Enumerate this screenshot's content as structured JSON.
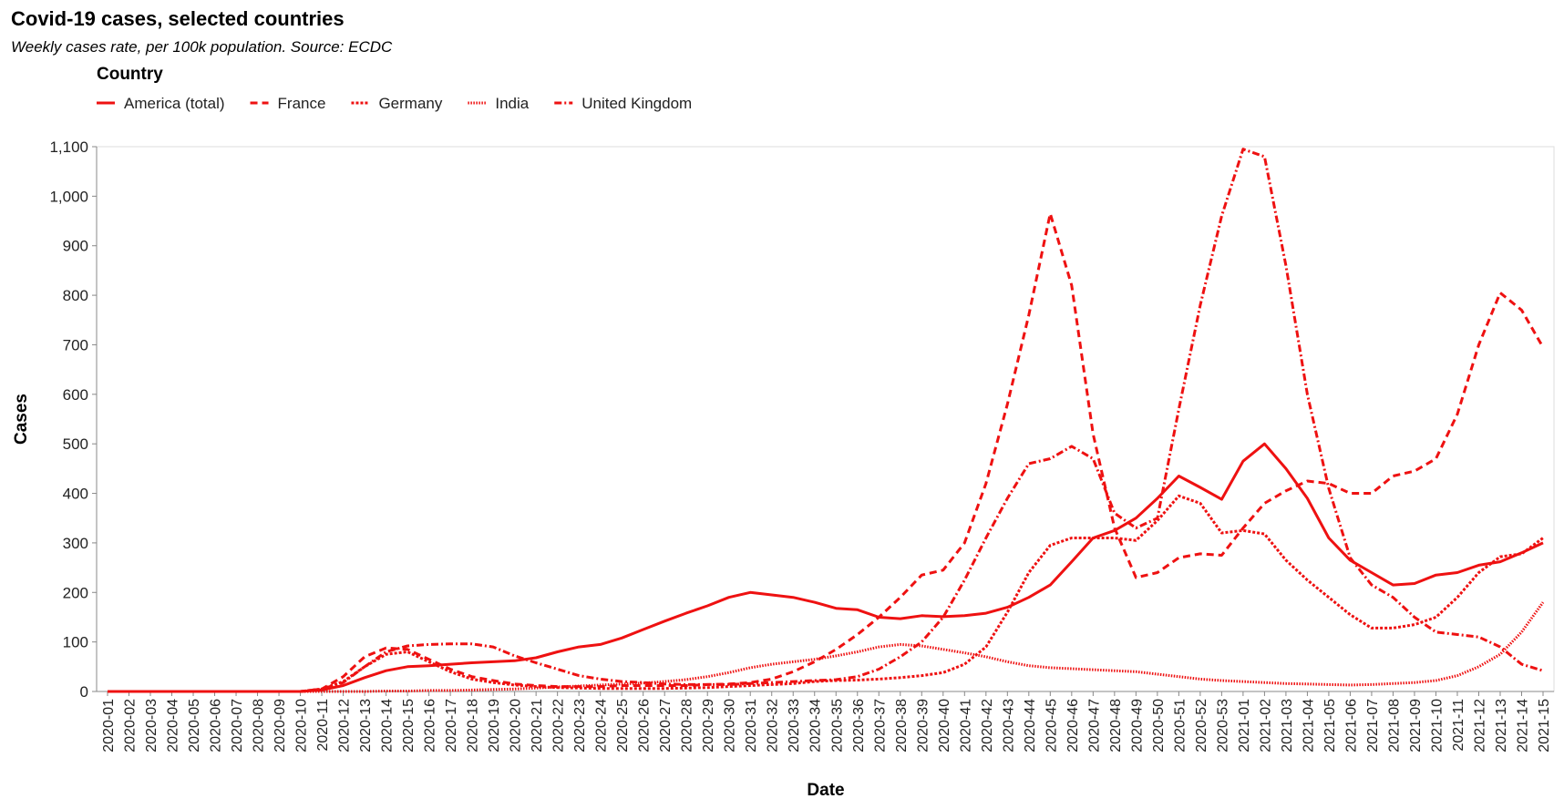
{
  "chart_data": {
    "type": "line",
    "title": "Covid-19 cases, selected countries",
    "subtitle": "Weekly cases rate, per 100k population. Source: ECDC",
    "legend_title": "Country",
    "x_label": "Date",
    "y_label": "Cases",
    "categories": [
      "2020-01",
      "2020-02",
      "2020-03",
      "2020-04",
      "2020-05",
      "2020-06",
      "2020-07",
      "2020-08",
      "2020-09",
      "2020-10",
      "2020-11",
      "2020-12",
      "2020-13",
      "2020-14",
      "2020-15",
      "2020-16",
      "2020-17",
      "2020-18",
      "2020-19",
      "2020-20",
      "2020-21",
      "2020-22",
      "2020-23",
      "2020-24",
      "2020-25",
      "2020-26",
      "2020-27",
      "2020-28",
      "2020-29",
      "2020-30",
      "2020-31",
      "2020-32",
      "2020-33",
      "2020-34",
      "2020-35",
      "2020-36",
      "2020-37",
      "2020-38",
      "2020-39",
      "2020-40",
      "2020-41",
      "2020-42",
      "2020-43",
      "2020-44",
      "2020-45",
      "2020-46",
      "2020-47",
      "2020-48",
      "2020-49",
      "2020-50",
      "2020-51",
      "2020-52",
      "2020-53",
      "2021-01",
      "2021-02",
      "2021-03",
      "2021-04",
      "2021-05",
      "2021-06",
      "2021-07",
      "2021-08",
      "2021-09",
      "2021-10",
      "2021-11",
      "2021-12",
      "2021-13",
      "2021-14",
      "2021-15"
    ],
    "series": [
      {
        "name": "America (total)",
        "color": "#ee1111",
        "dash": [],
        "values": [
          0,
          0,
          0,
          0,
          0,
          0,
          0,
          0,
          0,
          0,
          3,
          12,
          28,
          42,
          50,
          52,
          55,
          58,
          60,
          62,
          68,
          80,
          90,
          95,
          108,
          125,
          142,
          158,
          173,
          190,
          200,
          195,
          190,
          180,
          168,
          165,
          150,
          147,
          153,
          151,
          153,
          158,
          170,
          190,
          215,
          262,
          310,
          325,
          350,
          390,
          435,
          412,
          388,
          465,
          500,
          450,
          390,
          310,
          265,
          240,
          215,
          218,
          235,
          240,
          255,
          262,
          280,
          300
        ]
      },
      {
        "name": "France",
        "color": "#ee1111",
        "dash": [
          8,
          5
        ],
        "values": [
          0,
          0,
          0,
          0,
          0,
          0,
          0,
          0,
          0,
          0,
          5,
          30,
          70,
          88,
          85,
          65,
          45,
          30,
          22,
          15,
          12,
          10,
          10,
          10,
          12,
          12,
          12,
          12,
          14,
          15,
          18,
          25,
          40,
          60,
          85,
          115,
          150,
          190,
          235,
          245,
          300,
          420,
          580,
          760,
          965,
          820,
          520,
          330,
          230,
          240,
          270,
          278,
          275,
          330,
          380,
          405,
          425,
          420,
          400,
          400,
          435,
          445,
          470,
          560,
          700,
          805,
          770,
          695
        ]
      },
      {
        "name": "Germany",
        "color": "#ee1111",
        "dash": [
          3,
          2
        ],
        "values": [
          0,
          0,
          0,
          0,
          0,
          0,
          0,
          0,
          0,
          0,
          5,
          20,
          50,
          75,
          80,
          60,
          40,
          25,
          18,
          13,
          10,
          8,
          7,
          6,
          6,
          6,
          6,
          7,
          8,
          10,
          12,
          14,
          16,
          20,
          22,
          23,
          25,
          28,
          32,
          38,
          55,
          90,
          160,
          240,
          295,
          310,
          310,
          310,
          305,
          345,
          395,
          380,
          320,
          325,
          318,
          265,
          225,
          190,
          155,
          128,
          128,
          135,
          150,
          190,
          240,
          272,
          278,
          310
        ]
      },
      {
        "name": "India",
        "color": "#ee1111",
        "dash": [
          1.5,
          1.5
        ],
        "values": [
          0,
          0,
          0,
          0,
          0,
          0,
          0,
          0,
          0,
          0,
          0,
          0,
          0,
          1,
          1,
          2,
          2,
          3,
          4,
          5,
          7,
          9,
          11,
          13,
          15,
          17,
          20,
          24,
          30,
          38,
          48,
          55,
          60,
          65,
          72,
          80,
          90,
          95,
          92,
          85,
          78,
          70,
          60,
          52,
          48,
          46,
          44,
          42,
          40,
          35,
          30,
          25,
          22,
          20,
          18,
          16,
          15,
          14,
          13,
          14,
          16,
          18,
          22,
          32,
          50,
          75,
          120,
          180
        ]
      },
      {
        "name": "United Kingdom",
        "color": "#ee1111",
        "dash": [
          8,
          3,
          2,
          3
        ],
        "values": [
          0,
          0,
          0,
          0,
          0,
          0,
          0,
          0,
          0,
          0,
          5,
          18,
          50,
          80,
          92,
          95,
          96,
          96,
          90,
          72,
          58,
          45,
          32,
          25,
          20,
          18,
          15,
          14,
          14,
          14,
          16,
          18,
          20,
          22,
          24,
          30,
          45,
          70,
          100,
          150,
          225,
          310,
          390,
          460,
          470,
          495,
          470,
          360,
          330,
          350,
          570,
          780,
          960,
          1095,
          1080,
          860,
          600,
          410,
          270,
          215,
          190,
          150,
          120,
          115,
          110,
          90,
          55,
          42
        ]
      }
    ],
    "ylim": [
      0,
      1100
    ],
    "yticks": [
      0,
      100,
      200,
      300,
      400,
      500,
      600,
      700,
      800,
      900,
      {
        "value": 1000,
        "label": "1,000"
      },
      {
        "value": 1100,
        "label": "1,100"
      }
    ],
    "grid": false
  }
}
